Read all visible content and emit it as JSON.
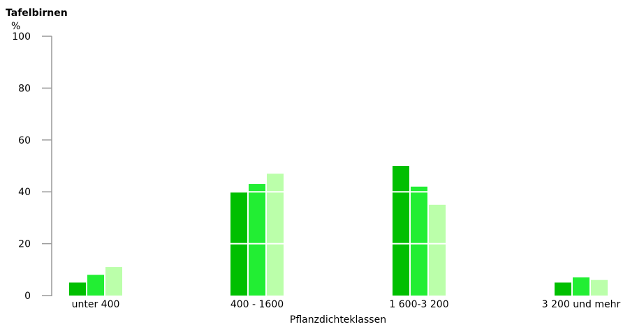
{
  "chart_data": {
    "type": "bar",
    "title": "Tafelbirnen",
    "ylabel": "%",
    "xlabel": "Pflanzdichteklassen",
    "categories": [
      "unter 400",
      "400 - 1600",
      "1 600-3 200",
      "3 200 und mehr"
    ],
    "series": [
      {
        "color": "#00bf00",
        "values": [
          5,
          40,
          50,
          5
        ]
      },
      {
        "color": "#22ee33",
        "values": [
          8,
          43,
          42,
          7
        ]
      },
      {
        "color": "#bbffaa",
        "values": [
          11,
          47,
          35,
          6
        ]
      }
    ],
    "ylim": [
      0,
      100
    ],
    "yticks": [
      "0",
      "20",
      "40",
      "60",
      "80",
      "100"
    ],
    "grid": "white lines across bars",
    "legend": "none"
  }
}
